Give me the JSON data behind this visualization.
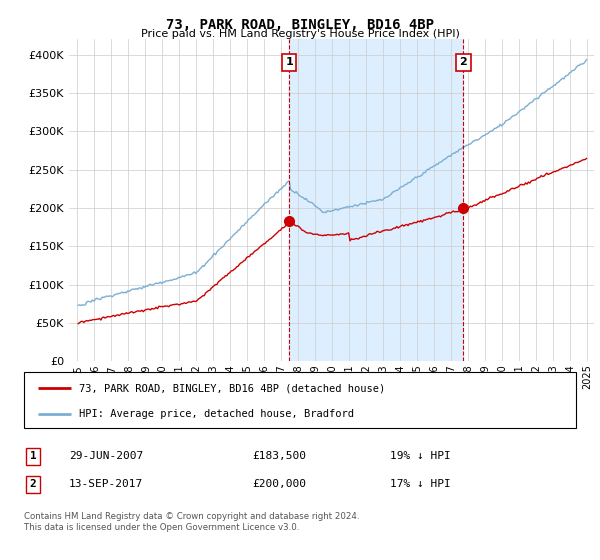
{
  "title": "73, PARK ROAD, BINGLEY, BD16 4BP",
  "subtitle": "Price paid vs. HM Land Registry's House Price Index (HPI)",
  "footnote": "Contains HM Land Registry data © Crown copyright and database right 2024.\nThis data is licensed under the Open Government Licence v3.0.",
  "legend_line1": "73, PARK ROAD, BINGLEY, BD16 4BP (detached house)",
  "legend_line2": "HPI: Average price, detached house, Bradford",
  "sale1_label": "1",
  "sale1_date": "29-JUN-2007",
  "sale1_price": "£183,500",
  "sale1_hpi": "19% ↓ HPI",
  "sale2_label": "2",
  "sale2_date": "13-SEP-2017",
  "sale2_price": "£200,000",
  "sale2_hpi": "17% ↓ HPI",
  "hpi_color": "#7bafd4",
  "price_color": "#cc0000",
  "shade_color": "#ddeeff",
  "dashed_color": "#cc0000",
  "background_color": "#ffffff",
  "grid_color": "#cccccc",
  "ylim": [
    0,
    420000
  ],
  "yticks": [
    0,
    50000,
    100000,
    150000,
    200000,
    250000,
    300000,
    350000,
    400000
  ],
  "year_start": 1995,
  "year_end": 2025,
  "sale1_year": 2007.46,
  "sale2_year": 2017.71,
  "sale1_price_val": 183500,
  "sale2_price_val": 200000
}
